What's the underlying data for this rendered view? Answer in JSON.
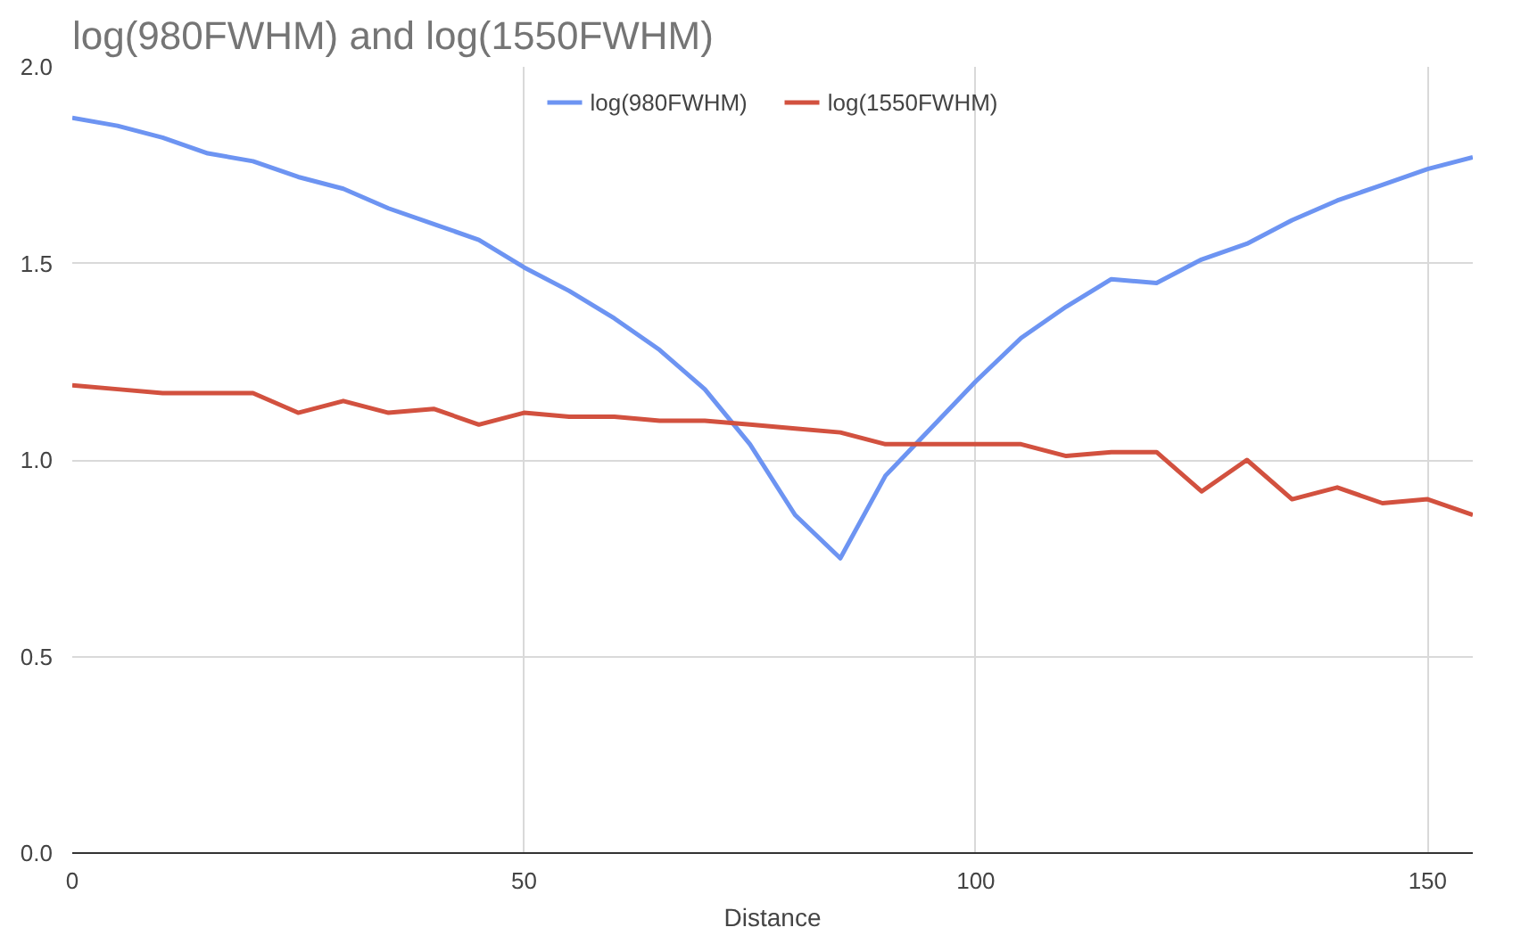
{
  "chart_data": {
    "type": "line",
    "title": "log(980FWHM) and log(1550FWHM)",
    "xlabel": "Distance",
    "x": [
      0,
      5,
      10,
      15,
      20,
      25,
      30,
      35,
      40,
      45,
      50,
      55,
      60,
      65,
      70,
      75,
      80,
      85,
      90,
      95,
      100,
      105,
      110,
      115,
      120,
      125,
      130,
      135,
      140,
      145,
      150,
      155
    ],
    "series": [
      {
        "name": "log(980FWHM)",
        "color": "#6d94f2",
        "values": [
          1.87,
          1.85,
          1.82,
          1.78,
          1.76,
          1.72,
          1.69,
          1.64,
          1.6,
          1.56,
          1.49,
          1.43,
          1.36,
          1.28,
          1.18,
          1.04,
          0.86,
          0.75,
          0.96,
          1.08,
          1.2,
          1.31,
          1.39,
          1.46,
          1.45,
          1.51,
          1.55,
          1.61,
          1.66,
          1.7,
          1.74,
          1.77
        ]
      },
      {
        "name": "log(1550FWHM)",
        "color": "#d2513f",
        "values": [
          1.19,
          1.18,
          1.17,
          1.17,
          1.17,
          1.12,
          1.15,
          1.12,
          1.13,
          1.09,
          1.12,
          1.11,
          1.11,
          1.1,
          1.1,
          1.09,
          1.08,
          1.07,
          1.04,
          1.04,
          1.04,
          1.04,
          1.01,
          1.02,
          1.02,
          0.92,
          1.0,
          0.9,
          0.93,
          0.89,
          0.9,
          0.86
        ]
      }
    ],
    "xlim": [
      0,
      155
    ],
    "xticks": [
      0,
      50,
      100,
      150
    ],
    "ylim": [
      0,
      2
    ],
    "yticks": [
      {
        "value": 0,
        "label": "0.0"
      },
      {
        "value": 0.5,
        "label": "0.5"
      },
      {
        "value": 1,
        "label": "1.0"
      },
      {
        "value": 1.5,
        "label": "1.5"
      },
      {
        "value": 2,
        "label": "2.0"
      }
    ],
    "grid": true,
    "legend": "top",
    "marker": "none",
    "line_style": "solid"
  }
}
